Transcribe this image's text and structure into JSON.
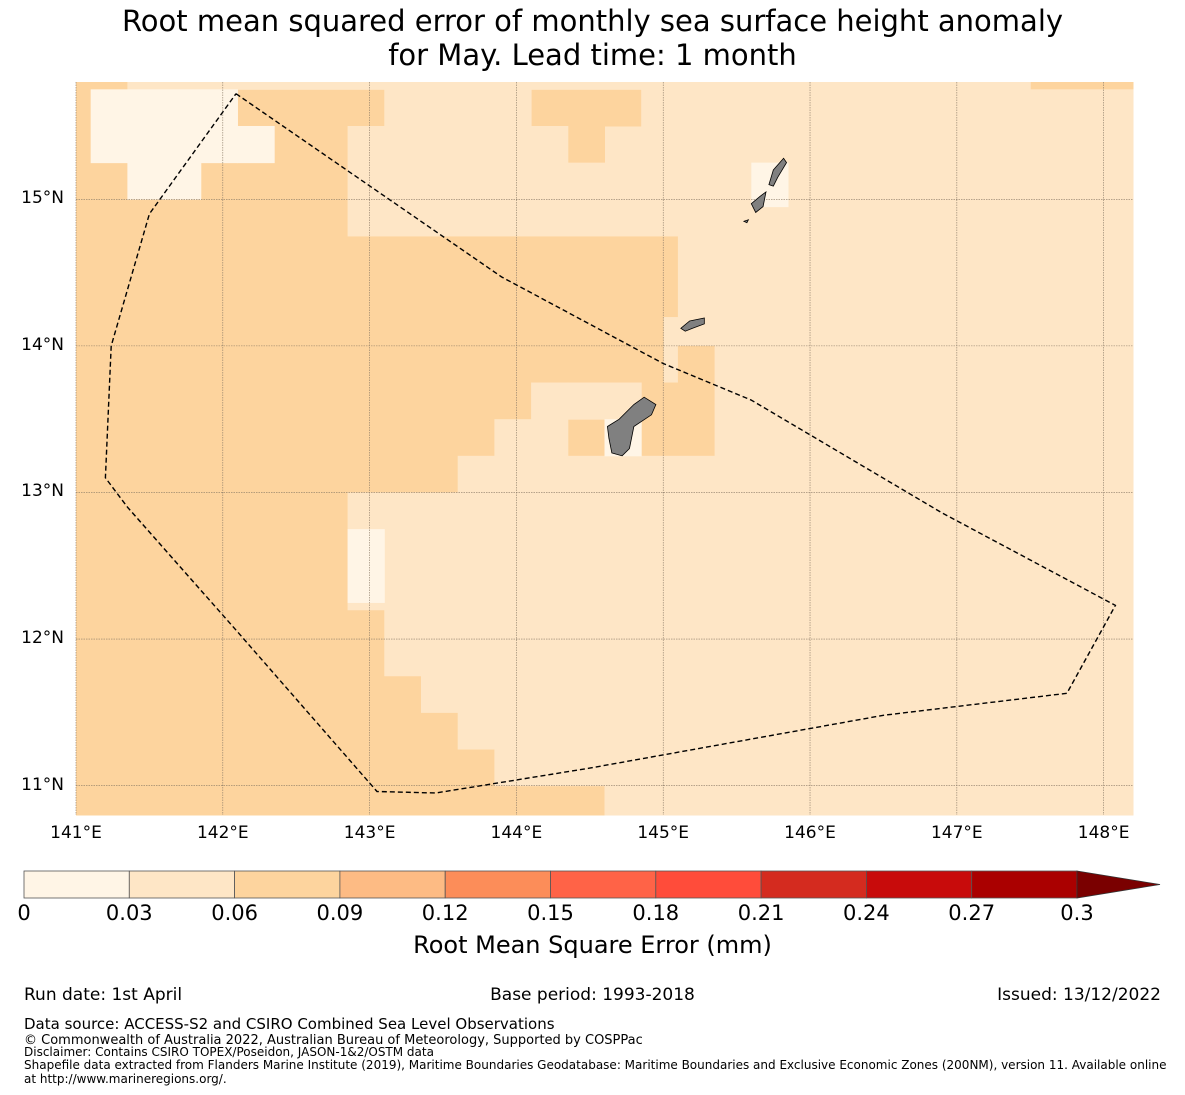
{
  "title": {
    "line1": "Root mean squared error of monthly sea surface height anomaly",
    "line2": "for May. Lead time: 1 month"
  },
  "map": {
    "lon_range": [
      141.0,
      148.2
    ],
    "lat_range": [
      10.8,
      15.8
    ],
    "lat_ticks": [
      {
        "value": 15,
        "label": "15°N"
      },
      {
        "value": 14,
        "label": "14°N"
      },
      {
        "value": 13,
        "label": "13°N"
      },
      {
        "value": 12,
        "label": "12°N"
      },
      {
        "value": 11,
        "label": "11°N"
      }
    ],
    "lon_ticks": [
      {
        "value": 141,
        "label": "141°E"
      },
      {
        "value": 142,
        "label": "142°E"
      },
      {
        "value": 143,
        "label": "143°E"
      },
      {
        "value": 144,
        "label": "144°E"
      },
      {
        "value": 145,
        "label": "145°E"
      },
      {
        "value": 146,
        "label": "146°E"
      },
      {
        "value": 147,
        "label": "147°E"
      },
      {
        "value": 148,
        "label": "148°E"
      }
    ],
    "land_color": "#808080",
    "boundary_style": "dashed black",
    "boundary_lonlat": [
      [
        142.09,
        15.72
      ],
      [
        143.9,
        14.47
      ],
      [
        145.0,
        13.88
      ],
      [
        145.6,
        13.63
      ],
      [
        146.9,
        12.86
      ],
      [
        148.08,
        12.23
      ],
      [
        147.75,
        11.63
      ],
      [
        146.5,
        11.48
      ],
      [
        144.5,
        11.12
      ],
      [
        143.45,
        10.95
      ],
      [
        143.05,
        10.96
      ],
      [
        142.1,
        12.05
      ],
      [
        141.35,
        12.9
      ],
      [
        141.2,
        13.1
      ],
      [
        141.24,
        14.0
      ],
      [
        141.5,
        14.9
      ],
      [
        142.09,
        15.72
      ]
    ],
    "islands_lonlat": [
      [
        [
          144.62,
          13.45
        ],
        [
          144.7,
          13.5
        ],
        [
          144.8,
          13.6
        ],
        [
          144.87,
          13.65
        ],
        [
          144.95,
          13.6
        ],
        [
          144.92,
          13.53
        ],
        [
          144.8,
          13.45
        ],
        [
          144.77,
          13.3
        ],
        [
          144.72,
          13.25
        ],
        [
          144.65,
          13.27
        ],
        [
          144.63,
          13.37
        ]
      ],
      [
        [
          145.12,
          14.12
        ],
        [
          145.18,
          14.17
        ],
        [
          145.28,
          14.19
        ],
        [
          145.28,
          14.15
        ],
        [
          145.2,
          14.12
        ],
        [
          145.15,
          14.1
        ]
      ],
      [
        [
          145.6,
          14.97
        ],
        [
          145.66,
          15.02
        ],
        [
          145.7,
          15.05
        ],
        [
          145.68,
          14.95
        ],
        [
          145.63,
          14.91
        ]
      ],
      [
        [
          145.72,
          15.1
        ],
        [
          145.75,
          15.2
        ],
        [
          145.82,
          15.28
        ],
        [
          145.84,
          15.25
        ],
        [
          145.78,
          15.15
        ],
        [
          145.75,
          15.09
        ]
      ],
      [
        [
          145.55,
          14.85
        ],
        [
          145.58,
          14.86
        ],
        [
          145.57,
          14.84
        ]
      ]
    ]
  },
  "chart_data": {
    "type": "heatmap",
    "xlabel": "",
    "ylabel": "",
    "cell_size_deg": 0.25,
    "x_range": [
      141.0,
      148.2
    ],
    "y_range": [
      10.8,
      15.8
    ],
    "description_of_values": "RMSE per 0.25° cell, mm",
    "background_value": 0.045,
    "regions": [
      {
        "value": 0.075,
        "rects": [
          [
            141.0,
            10.8,
            145.0,
            13.25
          ],
          [
            141.0,
            13.25,
            142.85,
            15.8
          ],
          [
            142.85,
            13.25,
            144.0,
            14.75
          ],
          [
            141.0,
            15.75,
            141.35,
            15.8
          ],
          [
            142.35,
            15.0,
            142.85,
            15.75
          ],
          [
            142.6,
            15.5,
            143.1,
            15.75
          ],
          [
            142.85,
            14.75,
            144.35,
            14.75
          ],
          [
            144.0,
            13.25,
            145.0,
            14.75
          ],
          [
            144.35,
            14.2,
            145.1,
            14.75
          ],
          [
            145.1,
            13.25,
            145.35,
            14.0
          ],
          [
            144.6,
            13.25,
            145.1,
            13.75
          ],
          [
            144.1,
            15.5,
            144.85,
            15.8
          ],
          [
            144.35,
            15.25,
            144.6,
            15.5
          ],
          [
            147.35,
            10.8,
            148.2,
            11.0
          ],
          [
            147.5,
            15.75,
            148.2,
            15.8
          ]
        ]
      },
      {
        "value": 0.045,
        "rects": [
          [
            142.85,
            12.2,
            145.0,
            13.0
          ],
          [
            143.1,
            11.75,
            145.0,
            12.2
          ],
          [
            143.35,
            11.5,
            145.0,
            11.75
          ],
          [
            143.6,
            11.25,
            145.0,
            11.5
          ],
          [
            143.85,
            11.0,
            145.0,
            11.25
          ],
          [
            144.6,
            10.8,
            145.0,
            11.0
          ],
          [
            143.6,
            13.0,
            145.0,
            13.25
          ],
          [
            143.85,
            13.25,
            144.35,
            13.5
          ],
          [
            144.1,
            13.5,
            144.35,
            13.75
          ],
          [
            144.35,
            13.5,
            144.85,
            13.75
          ],
          [
            145.0,
            10.8,
            148.2,
            13.25
          ],
          [
            145.35,
            13.25,
            148.2,
            14.2
          ],
          [
            145.1,
            14.2,
            148.2,
            15.75
          ],
          [
            144.35,
            14.75,
            145.1,
            15.25
          ],
          [
            142.85,
            14.75,
            144.35,
            15.5
          ],
          [
            143.1,
            15.5,
            144.1,
            15.75
          ],
          [
            141.35,
            15.75,
            147.5,
            15.8
          ],
          [
            144.85,
            15.25,
            145.1,
            15.8
          ]
        ]
      },
      {
        "value": 0.02,
        "rects": [
          [
            141.1,
            15.25,
            142.1,
            15.75
          ],
          [
            141.35,
            15.0,
            141.85,
            15.25
          ],
          [
            142.1,
            15.25,
            142.35,
            15.5
          ],
          [
            141.35,
            15.75,
            141.35,
            15.8
          ],
          [
            142.85,
            12.25,
            143.1,
            12.75
          ],
          [
            144.6,
            13.25,
            144.85,
            13.5
          ],
          [
            145.6,
            14.95,
            145.85,
            15.25
          ]
        ]
      }
    ]
  },
  "colorbar": {
    "ticks": [
      "0",
      "0.03",
      "0.06",
      "0.09",
      "0.12",
      "0.15",
      "0.18",
      "0.21",
      "0.24",
      "0.27",
      "0.3"
    ],
    "colors": [
      "#fff5e6",
      "#fee6c6",
      "#fdd49e",
      "#fdbb84",
      "#fc8d59",
      "#ff6347",
      "#ff4c3a",
      "#d42b1f",
      "#c80b0b",
      "#aa0000"
    ],
    "extend_color": "#7a0000",
    "label": "Root Mean Square Error (mm)"
  },
  "footer": {
    "run_date": "Run date: 1st April",
    "base_period": "Base period: 1993-2018",
    "issued": "Issued: 13/12/2022",
    "data_source": "Data source: ACCESS-S2 and CSIRO Combined Sea Level Observations",
    "copyright": "© Commonwealth of Australia 2022, Australian Bureau of Meteorology, Supported by COSPPac",
    "disclaimer": "Disclaimer: Contains CSIRO TOPEX/Poseidon, JASON-1&2/OSTM data",
    "shapefile": "Shapefile data extracted from Flanders Marine Institute (2019), Maritime Boundaries Geodatabase: Maritime Boundaries and Exclusive Economic Zones (200NM), version 11. Available online at http://www.marineregions.org/."
  }
}
